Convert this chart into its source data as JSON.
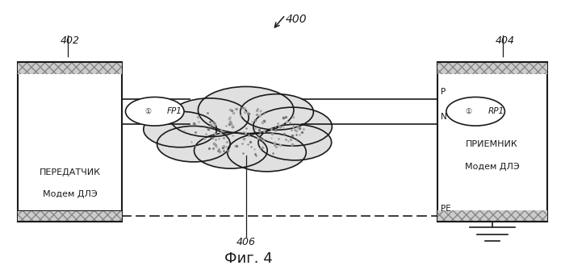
{
  "bg_color": "#ffffff",
  "title": "Фиг. 4",
  "label_400": "400",
  "label_402": "402",
  "label_404": "404",
  "label_406": "406",
  "transmitter_text1": "ПЕРЕДАТЧИК",
  "transmitter_text2": "Модем ДЛЭ",
  "receiver_text1": "ПРИЕМНИК",
  "receiver_text2": "Модем ДЛЭ",
  "fp1_label": "FP1",
  "rp1_label": "RP1",
  "line_p": "P",
  "line_n": "N",
  "line_pe": "PE",
  "fig_width": 7.0,
  "fig_height": 3.45
}
